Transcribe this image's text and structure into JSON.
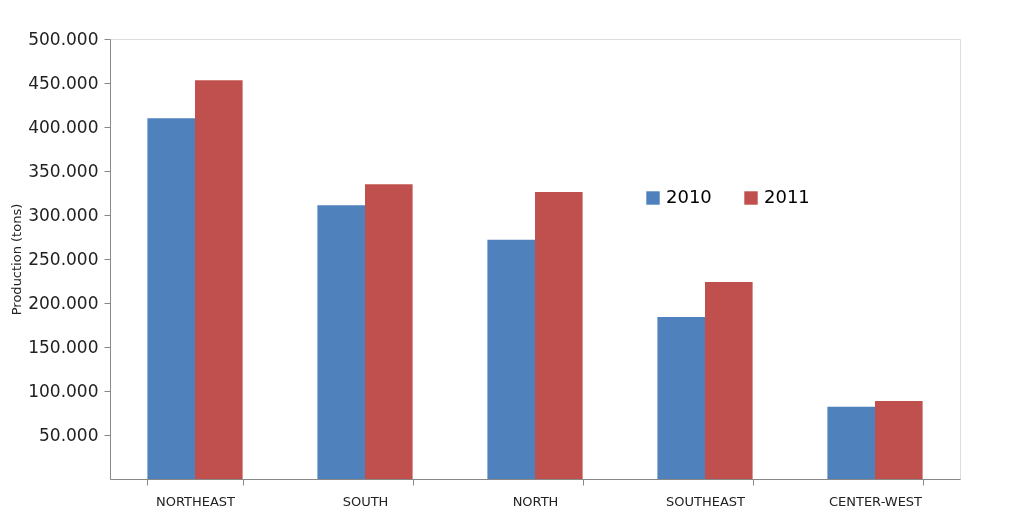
{
  "chart_data": {
    "type": "bar",
    "ylabel": "Production (tons)",
    "categories": [
      "NORTHEAST",
      "SOUTH",
      "NORTH",
      "SOUTHEAST",
      "CENTER-WEST"
    ],
    "series": [
      {
        "name": "2010",
        "color": "#4f81bd",
        "values": [
          410000,
          311000,
          272000,
          184000,
          82000
        ]
      },
      {
        "name": "2011",
        "color": "#c0504d",
        "values": [
          453000,
          335000,
          326000,
          224000,
          88500
        ]
      }
    ],
    "ylim": [
      0,
      500000
    ],
    "yticks": [
      {
        "value": 50000,
        "label": "50.000"
      },
      {
        "value": 100000,
        "label": "100.000"
      },
      {
        "value": 150000,
        "label": "150.000"
      },
      {
        "value": 200000,
        "label": "200.000"
      },
      {
        "value": 250000,
        "label": "250.000"
      },
      {
        "value": 300000,
        "label": "300.000"
      },
      {
        "value": 350000,
        "label": "350.000"
      },
      {
        "value": 400000,
        "label": "400.000"
      },
      {
        "value": 450000,
        "label": "450.000"
      },
      {
        "value": 500000,
        "label": "500.000"
      }
    ],
    "grid": false,
    "legend": "top right"
  }
}
